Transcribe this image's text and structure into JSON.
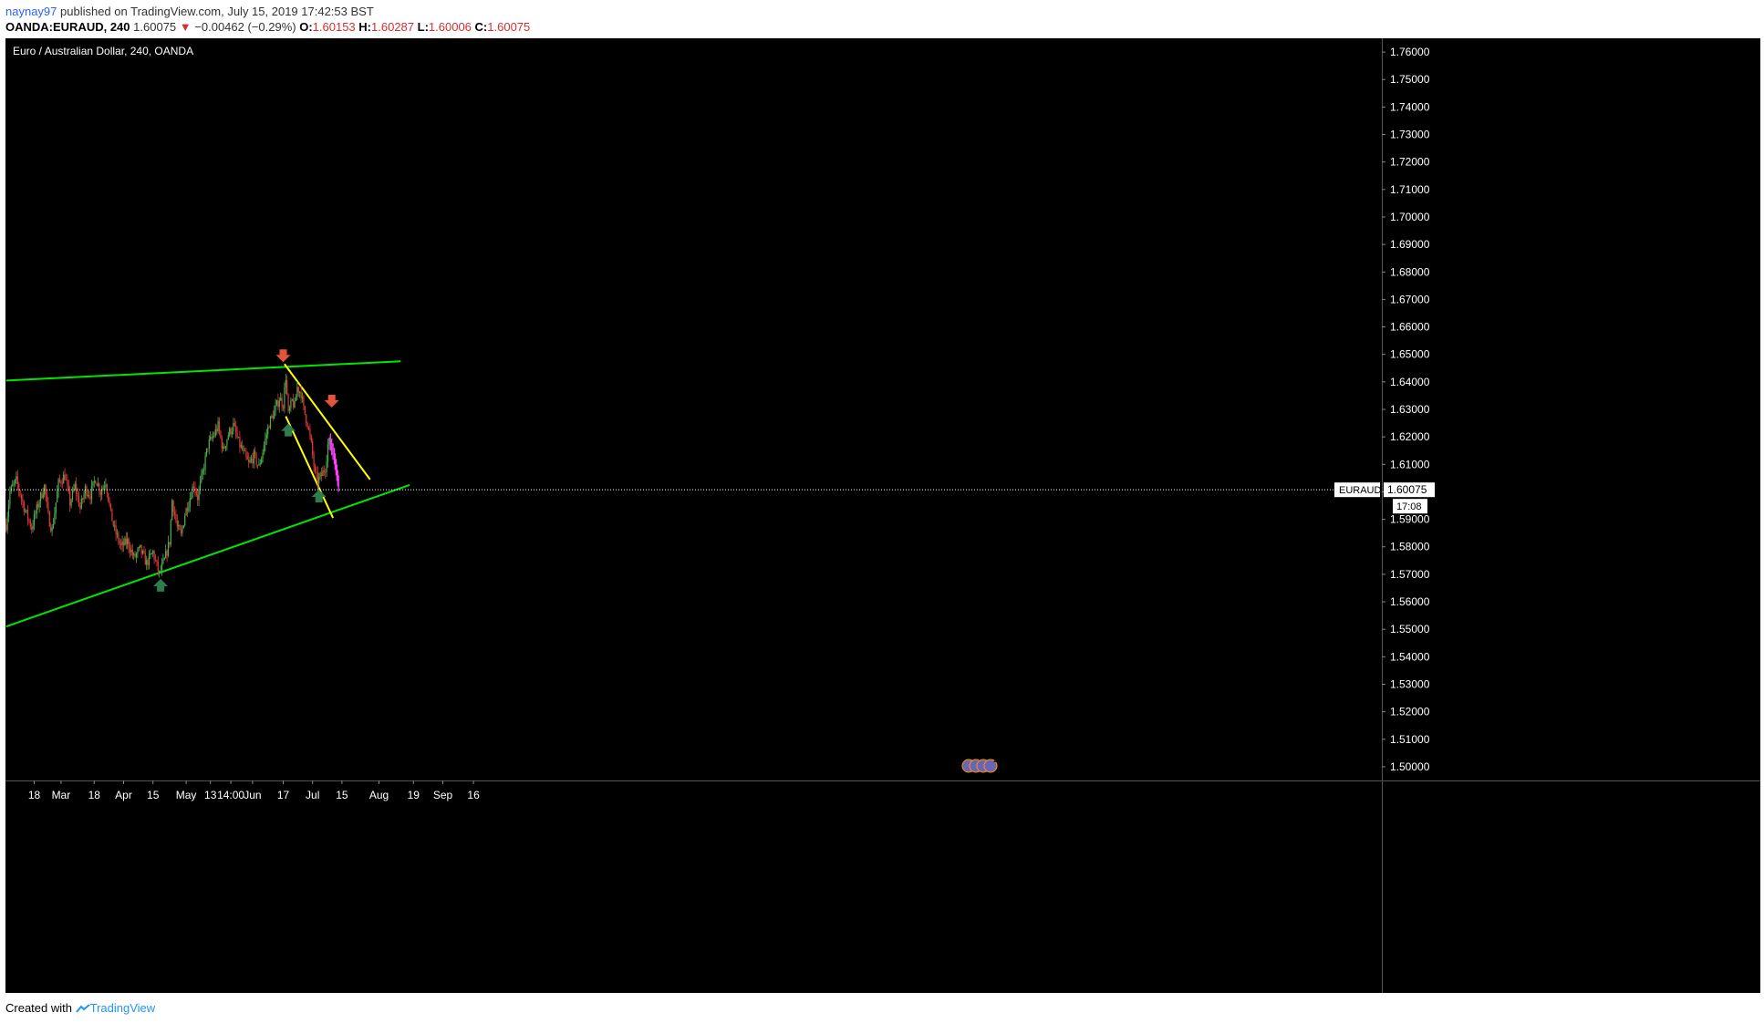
{
  "header": {
    "user": "naynay97",
    "published": " published on TradingView.com, July 15, 2019 17:42:53 BST",
    "symbol": "OANDA:EURAUD, 240",
    "price": "1.60075",
    "change": "−0.00462 (−0.29%)",
    "o_label": "O:",
    "o_value": "1.60153",
    "h_label": "H:",
    "h_value": "1.60287",
    "l_label": "L:",
    "l_value": "1.60006",
    "c_label": "C:",
    "c_value": "1.60075"
  },
  "footer": {
    "created": "Created with",
    "brand": "TradingView"
  },
  "colors": {
    "background": "#000000",
    "up_candle": "#4caf50",
    "down_candle": "#e53935",
    "green_trend": "#00e600",
    "yellow_trend": "#ffff00",
    "projection": "#ff40ff",
    "arrow_up": "#2e7d4f",
    "arrow_down": "#e5533d"
  },
  "chart_data": {
    "type": "candlestick",
    "title": "Euro / Australian Dollar, 240, OANDA",
    "ylim": [
      1.495,
      1.765
    ],
    "y_ticks": [
      "1.76000",
      "1.75000",
      "1.74000",
      "1.73000",
      "1.72000",
      "1.71000",
      "1.70000",
      "1.69000",
      "1.68000",
      "1.67000",
      "1.66000",
      "1.65000",
      "1.64000",
      "1.63000",
      "1.62000",
      "1.61000",
      "1.60000",
      "1.59000",
      "1.58000",
      "1.57000",
      "1.56000",
      "1.55000",
      "1.54000",
      "1.53000",
      "1.52000",
      "1.51000",
      "1.50000"
    ],
    "x_ticks": [
      {
        "label": "18",
        "index": 22
      },
      {
        "label": "Mar",
        "index": 43
      },
      {
        "label": "18",
        "index": 69
      },
      {
        "label": "Apr",
        "index": 92
      },
      {
        "label": "15",
        "index": 115
      },
      {
        "label": "May",
        "index": 141
      },
      {
        "label": "13",
        "index": 160
      },
      {
        "label": "14:00",
        "index": 176
      },
      {
        "label": "Jun",
        "index": 193
      },
      {
        "label": "17",
        "index": 217
      },
      {
        "label": "Jul",
        "index": 240
      },
      {
        "label": "15",
        "index": 263
      },
      {
        "label": "Aug",
        "index": 292
      },
      {
        "label": "19",
        "index": 319
      },
      {
        "label": "Sep",
        "index": 342
      },
      {
        "label": "16",
        "index": 366
      }
    ],
    "last_price_label": "EURAUD",
    "last_price": "1.60075",
    "countdown": "17:08",
    "anchors": [
      [
        0,
        1.588
      ],
      [
        3,
        1.6
      ],
      [
        8,
        1.604
      ],
      [
        15,
        1.593
      ],
      [
        20,
        1.587
      ],
      [
        26,
        1.597
      ],
      [
        30,
        1.602
      ],
      [
        33,
        1.591
      ],
      [
        36,
        1.586
      ],
      [
        41,
        1.603
      ],
      [
        46,
        1.606
      ],
      [
        50,
        1.596
      ],
      [
        54,
        1.602
      ],
      [
        58,
        1.594
      ],
      [
        62,
        1.601
      ],
      [
        66,
        1.599
      ],
      [
        70,
        1.605
      ],
      [
        74,
        1.6
      ],
      [
        78,
        1.604
      ],
      [
        82,
        1.592
      ],
      [
        85,
        1.586
      ],
      [
        90,
        1.58
      ],
      [
        95,
        1.582
      ],
      [
        100,
        1.576
      ],
      [
        105,
        1.579
      ],
      [
        110,
        1.574
      ],
      [
        115,
        1.578
      ],
      [
        118,
        1.573
      ],
      [
        120,
        1.57
      ],
      [
        124,
        1.575
      ],
      [
        128,
        1.582
      ],
      [
        130,
        1.597
      ],
      [
        134,
        1.587
      ],
      [
        137,
        1.584
      ],
      [
        140,
        1.592
      ],
      [
        144,
        1.598
      ],
      [
        147,
        1.603
      ],
      [
        150,
        1.598
      ],
      [
        154,
        1.607
      ],
      [
        158,
        1.617
      ],
      [
        162,
        1.62
      ],
      [
        166,
        1.624
      ],
      [
        170,
        1.615
      ],
      [
        174,
        1.621
      ],
      [
        178,
        1.624
      ],
      [
        182,
        1.618
      ],
      [
        186,
        1.614
      ],
      [
        190,
        1.61
      ],
      [
        194,
        1.613
      ],
      [
        198,
        1.609
      ],
      [
        202,
        1.617
      ],
      [
        206,
        1.625
      ],
      [
        210,
        1.629
      ],
      [
        214,
        1.634
      ],
      [
        217,
        1.632
      ],
      [
        219,
        1.642
      ],
      [
        221,
        1.628
      ],
      [
        224,
        1.633
      ],
      [
        226,
        1.631
      ],
      [
        228,
        1.638
      ],
      [
        231,
        1.636
      ],
      [
        233,
        1.63
      ],
      [
        236,
        1.625
      ],
      [
        239,
        1.617
      ],
      [
        242,
        1.606
      ],
      [
        244,
        1.604
      ],
      [
        247,
        1.606
      ],
      [
        250,
        1.609
      ],
      [
        252,
        1.617
      ],
      [
        254,
        1.619
      ]
    ],
    "projection": [
      [
        254,
        1.618
      ],
      [
        257,
        1.613
      ],
      [
        259,
        1.607
      ],
      [
        261,
        1.601
      ]
    ],
    "trendlines": [
      {
        "name": "upper-green",
        "color": "green",
        "points": [
          [
            0,
            1.6405
          ],
          [
            309,
            1.6475
          ]
        ]
      },
      {
        "name": "lower-green",
        "color": "green",
        "points": [
          [
            0,
            1.551
          ],
          [
            316,
            1.6025
          ]
        ]
      },
      {
        "name": "upper-yellow",
        "color": "yellow",
        "points": [
          [
            218,
            1.6465
          ],
          [
            285,
            1.6045
          ]
        ]
      },
      {
        "name": "lower-yellow",
        "color": "yellow",
        "points": [
          [
            219,
            1.6275
          ],
          [
            256,
            1.5905
          ]
        ]
      }
    ],
    "arrows": [
      {
        "dir": "down",
        "index": 217,
        "price": 1.6485
      },
      {
        "dir": "up",
        "index": 221,
        "price": 1.6235
      },
      {
        "dir": "up",
        "index": 121,
        "price": 1.567
      },
      {
        "dir": "up",
        "index": 245,
        "price": 1.5995
      },
      {
        "dir": "down",
        "index": 255,
        "price": 1.632
      }
    ],
    "event_badges": [
      "2",
      "4",
      "3",
      "2"
    ]
  }
}
